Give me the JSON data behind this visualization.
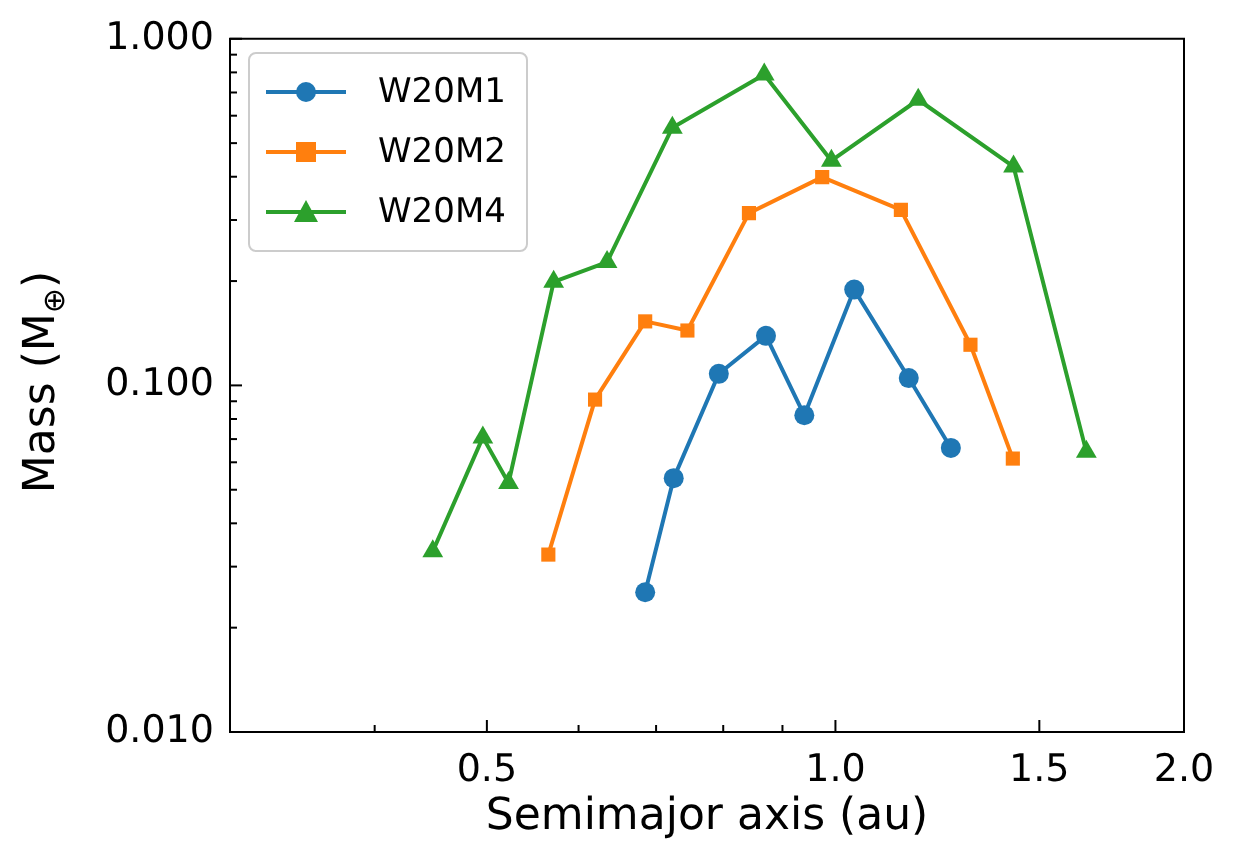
{
  "chart_data": {
    "type": "line",
    "xlabel": "Semimajor axis (au)",
    "ylabel": "Mass (M$_{⊕}$)",
    "log": "xy",
    "xlim": [
      0.3,
      2.0
    ],
    "ylim": [
      0.01,
      1.0
    ],
    "xticks": [
      {
        "value": 0.4,
        "label": null
      },
      0.5,
      {
        "value": 0.6,
        "label": null
      },
      {
        "value": 0.7,
        "label": null
      },
      {
        "value": 0.8,
        "label": null
      },
      {
        "value": 0.9,
        "label": null
      },
      {
        "value": 1.0,
        "label": "1.0"
      },
      1.5,
      {
        "value": 2.0,
        "label": "2.0"
      }
    ],
    "yticks": [
      {
        "value": 0.01,
        "label": "0.010"
      },
      {
        "value": 0.02,
        "label": null
      },
      {
        "value": 0.03,
        "label": null
      },
      {
        "value": 0.04,
        "label": null
      },
      {
        "value": 0.05,
        "label": null
      },
      {
        "value": 0.06,
        "label": null
      },
      {
        "value": 0.07,
        "label": null
      },
      {
        "value": 0.08,
        "label": null
      },
      {
        "value": 0.09,
        "label": null
      },
      {
        "value": 0.1,
        "label": "0.100"
      },
      {
        "value": 0.2,
        "label": null
      },
      {
        "value": 0.3,
        "label": null
      },
      {
        "value": 0.4,
        "label": null
      },
      {
        "value": 0.5,
        "label": null
      },
      {
        "value": 0.6,
        "label": null
      },
      {
        "value": 0.7,
        "label": null
      },
      {
        "value": 0.8,
        "label": null
      },
      {
        "value": 0.9,
        "label": null
      },
      {
        "value": 1.0,
        "label": "1.000"
      }
    ],
    "grid": false,
    "legend": "top left",
    "line_style": "solid",
    "series": [
      {
        "name": "W20M1",
        "color": "#1f77b4",
        "marker": "circle",
        "x": [
          0.685,
          0.725,
          0.793,
          0.871,
          0.94,
          1.038,
          1.157,
          1.258
        ],
        "values": [
          0.0253,
          0.054,
          0.108,
          0.139,
          0.082,
          0.189,
          0.105,
          0.066
        ]
      },
      {
        "name": "W20M2",
        "color": "#ff7f0e",
        "marker": "square",
        "x": [
          0.565,
          0.62,
          0.685,
          0.745,
          0.842,
          0.974,
          1.139,
          1.308,
          1.423
        ],
        "values": [
          0.0325,
          0.091,
          0.153,
          0.144,
          0.314,
          0.399,
          0.321,
          0.131,
          0.0615
        ]
      },
      {
        "name": "W20M4",
        "color": "#2ca02c",
        "marker": "triangle",
        "x": [
          0.449,
          0.496,
          0.522,
          0.571,
          0.635,
          0.723,
          0.868,
          0.992,
          1.179,
          1.425,
          1.647
        ],
        "values": [
          0.0332,
          0.0708,
          0.0523,
          0.199,
          0.227,
          0.554,
          0.789,
          0.445,
          0.667,
          0.428,
          0.0643
        ]
      }
    ]
  }
}
